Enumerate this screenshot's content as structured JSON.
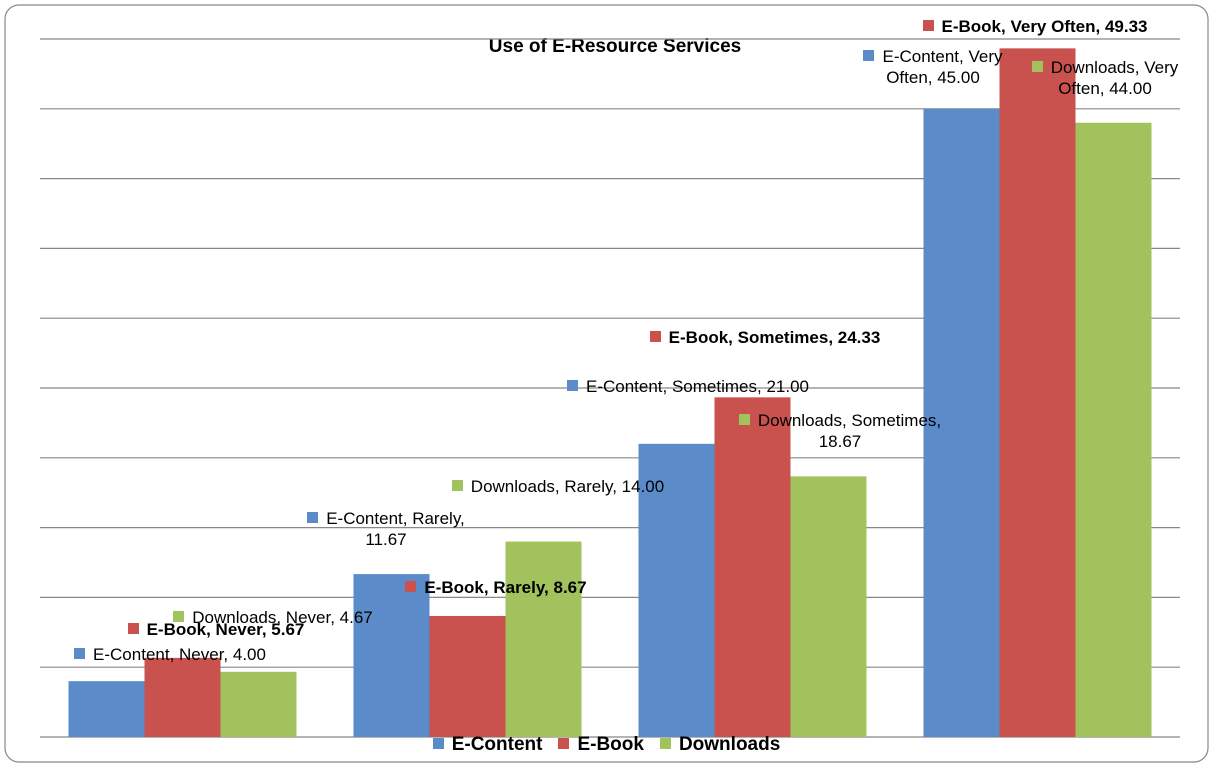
{
  "chart_data": {
    "type": "bar",
    "title": "Use of E-Resource Services",
    "categories": [
      "Never",
      "Rarely",
      "Sometimes",
      "Very Often"
    ],
    "series": [
      {
        "name": "E-Content",
        "color": "#5b8bc8",
        "values": [
          4.0,
          11.67,
          21.0,
          45.0
        ],
        "value_labels": [
          "E-Content, Never, 4.00",
          "E-Content, Rarely, 11.67",
          "E-Content, Sometimes, 21.00",
          "E-Content, Very Often, 45.00"
        ]
      },
      {
        "name": "E-Book",
        "color": "#c9524f",
        "values": [
          5.67,
          8.67,
          24.33,
          49.33
        ],
        "value_labels": [
          "E-Book, Never, 5.67",
          "E-Book, Rarely, 8.67",
          "E-Book, Sometimes, 24.33",
          "E-Book, Very Often, 49.33"
        ]
      },
      {
        "name": "Downloads",
        "color": "#a2c25e",
        "values": [
          4.67,
          14.0,
          18.67,
          44.0
        ],
        "value_labels": [
          "Downloads, Never, 4.67",
          "Downloads, Rarely, 14.00",
          "Downloads, Sometimes, 18.67",
          "Downloads, Very Often, 44.00"
        ]
      }
    ],
    "ylim": [
      0,
      50
    ],
    "yticks": [
      0,
      5,
      10,
      15,
      20,
      25,
      30,
      35,
      40,
      45,
      50
    ],
    "grid": true,
    "legend": "bottom"
  }
}
